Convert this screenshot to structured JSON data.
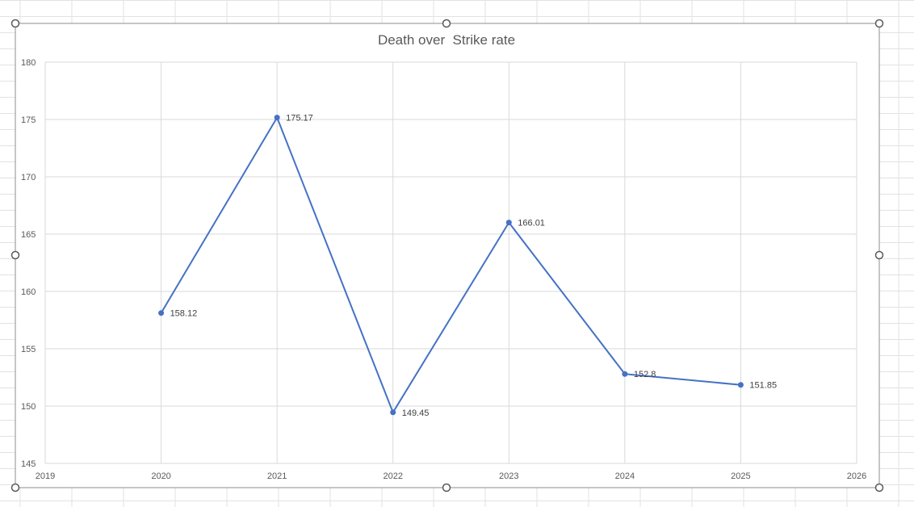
{
  "chart_data": {
    "type": "scatter",
    "title": "Death over  Strike rate",
    "xlabel": "",
    "ylabel": "",
    "xlim": [
      2019,
      2026
    ],
    "ylim": [
      145,
      180
    ],
    "x_ticks": [
      2019,
      2020,
      2021,
      2022,
      2023,
      2024,
      2025,
      2026
    ],
    "y_ticks": [
      145,
      150,
      155,
      160,
      165,
      170,
      175,
      180
    ],
    "grid": true,
    "legend": "none",
    "line_color": "#4472C4",
    "series": [
      {
        "x": [
          2020,
          2021,
          2022,
          2023,
          2024,
          2025
        ],
        "y": [
          158.12,
          175.17,
          149.45,
          166.01,
          152.8,
          151.85
        ],
        "labels": [
          "158.12",
          "175.17",
          "149.45",
          "166.01",
          "152.8",
          "151.85"
        ]
      }
    ]
  }
}
